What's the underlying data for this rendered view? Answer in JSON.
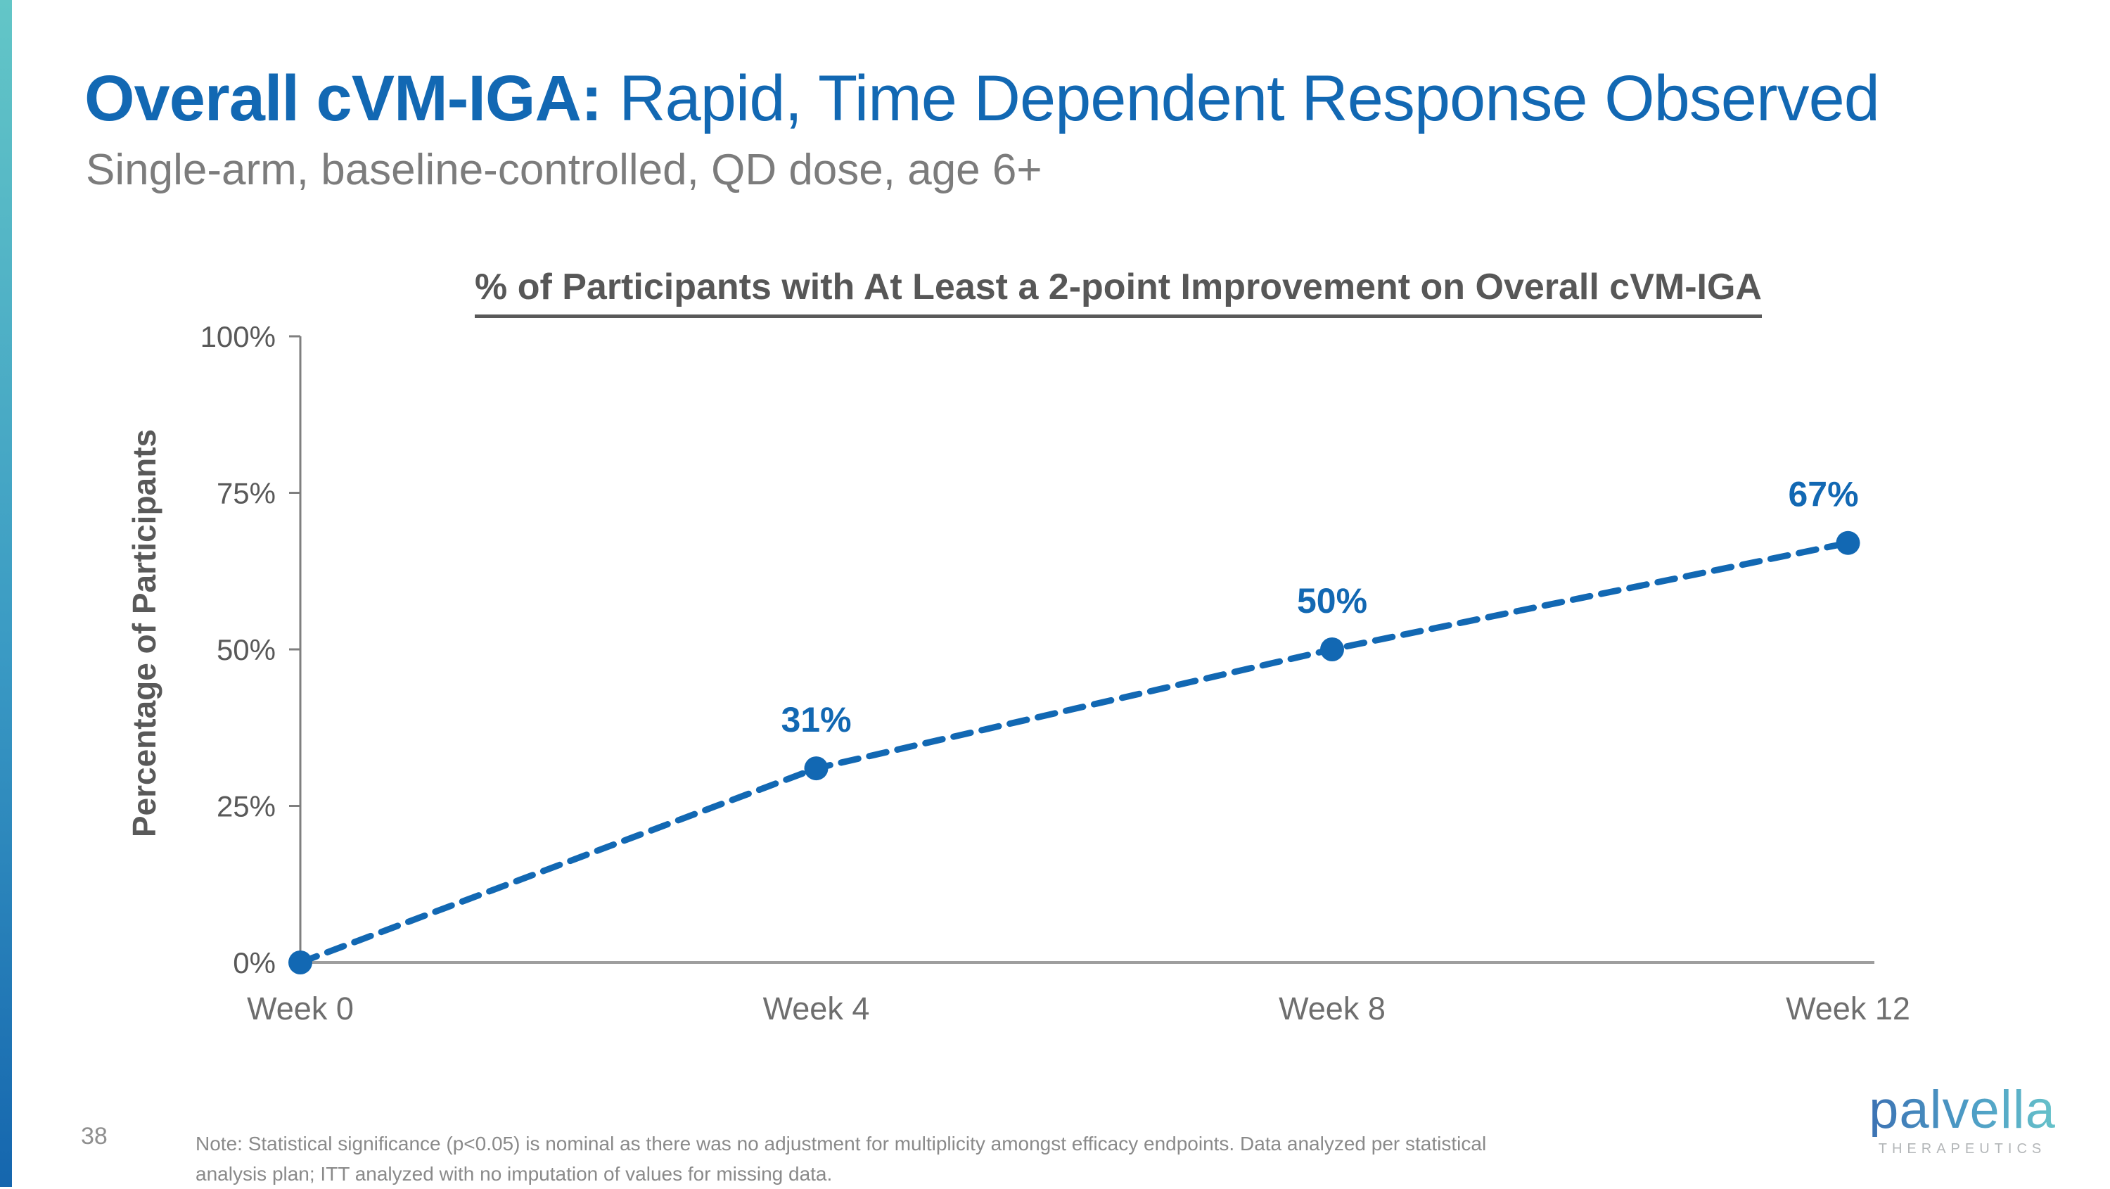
{
  "header": {
    "title_bold": "Overall cVM-IGA:",
    "title_rest": " Rapid, Time Dependent Response Observed",
    "subtitle": "Single-arm, baseline-controlled, QD dose, age 6+"
  },
  "chart_data": {
    "type": "line",
    "title": "% of Participants with At Least a 2-point Improvement on Overall cVM-IGA",
    "xlabel": "",
    "ylabel": "Percentage of Participants",
    "categories": [
      "Week 0",
      "Week 4",
      "Week 8",
      "Week 12"
    ],
    "values": [
      0,
      31,
      50,
      67
    ],
    "point_labels": [
      "",
      "31%",
      "50%",
      "67%"
    ],
    "ylim": [
      0,
      100
    ],
    "yticks": [
      0,
      25,
      50,
      75,
      100
    ],
    "ytick_labels": [
      "0%",
      "25%",
      "50%",
      "75%",
      "100%"
    ],
    "grid": false,
    "legend": false,
    "line_style": "dashed",
    "marker": "circle",
    "series_color": "#1268b3"
  },
  "footer": {
    "page_number": "38",
    "note_line1": "Note: Statistical significance (p<0.05) is nominal as there was no adjustment for multiplicity amongst efficacy endpoints. Data analyzed per statistical",
    "note_line2": "analysis plan; ITT analyzed with no imputation of values for missing data.",
    "logo": {
      "wordmark": "palvella",
      "subtext": "THERAPEUTICS"
    }
  },
  "colors": {
    "accent_blue": "#1268b3",
    "accent_teal": "#63c6c7",
    "y_axis_line": "#7f7f7f",
    "x_axis_line": "#9e9e9e",
    "ytick_text": "#595959",
    "xtick_text": "#6e6e6e",
    "title_text": "#1268b3",
    "subtitle_text": "#7c7c7c",
    "chart_title_text": "#575757",
    "note_text": "#8a8a8a"
  }
}
